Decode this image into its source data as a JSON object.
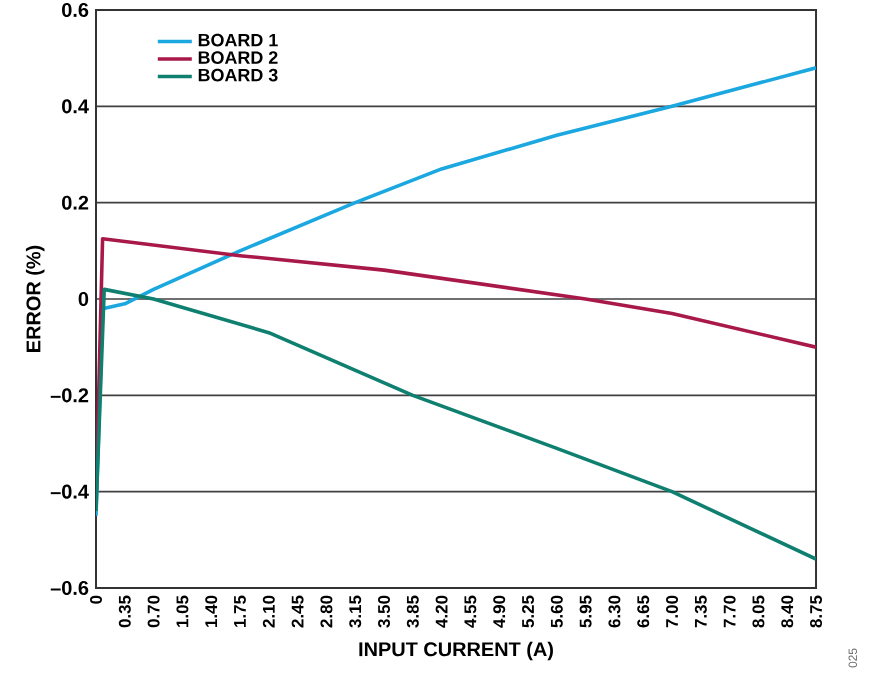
{
  "chart_data": {
    "type": "line",
    "xlabel": "INPUT CURRENT (A)",
    "ylabel": "ERROR (%)",
    "annotations": [
      "025"
    ],
    "xlim": [
      0,
      8.75
    ],
    "ylim": [
      -0.6,
      0.6
    ],
    "xticks": [
      0,
      0.35,
      {
        "value": 0.7,
        "label": "0.70"
      },
      1.05,
      {
        "value": 1.4,
        "label": "1.40"
      },
      1.75,
      {
        "value": 2.1,
        "label": "2.10"
      },
      2.45,
      {
        "value": 2.8,
        "label": "2.80"
      },
      3.15,
      {
        "value": 3.5,
        "label": "3.50"
      },
      3.85,
      {
        "value": 4.2,
        "label": "4.20"
      },
      4.55,
      {
        "value": 4.9,
        "label": "4.90"
      },
      5.25,
      {
        "value": 5.6,
        "label": "5.60"
      },
      5.95,
      {
        "value": 6.3,
        "label": "6.30"
      },
      6.65,
      {
        "value": 7.0,
        "label": "7.00"
      },
      7.35,
      {
        "value": 7.7,
        "label": "7.70"
      },
      8.05,
      {
        "value": 8.4,
        "label": "8.40"
      },
      8.75
    ],
    "yticks": [
      {
        "value": -0.6,
        "label": "–0.6"
      },
      {
        "value": -0.4,
        "label": "–0.4"
      },
      {
        "value": -0.2,
        "label": "–0.2"
      },
      0,
      0.2,
      0.4,
      0.6
    ],
    "grid": "y",
    "legend": "top left",
    "marker": "none",
    "line_style": "solid",
    "series": [
      {
        "name": "BOARD 1",
        "color": "#1ba7e0",
        "x": [
          0,
          0.08,
          0.35,
          0.7,
          1.75,
          3.15,
          4.2,
          5.6,
          7.0,
          8.75
        ],
        "values": [
          -0.45,
          -0.02,
          -0.01,
          0.02,
          0.1,
          0.2,
          0.27,
          0.34,
          0.4,
          0.48
        ]
      },
      {
        "name": "BOARD 2",
        "color": "#a8194a",
        "x": [
          0,
          0.08,
          1.75,
          3.5,
          5.95,
          7.0,
          8.75
        ],
        "values": [
          -0.42,
          0.125,
          0.09,
          0.06,
          0.0,
          -0.03,
          -0.1
        ]
      },
      {
        "name": "BOARD 3",
        "color": "#0f8070",
        "x": [
          0,
          0.1,
          0.7,
          2.1,
          3.85,
          5.6,
          7.0,
          8.75
        ],
        "values": [
          -0.44,
          0.02,
          0.0,
          -0.07,
          -0.2,
          -0.31,
          -0.4,
          -0.54
        ]
      }
    ]
  }
}
